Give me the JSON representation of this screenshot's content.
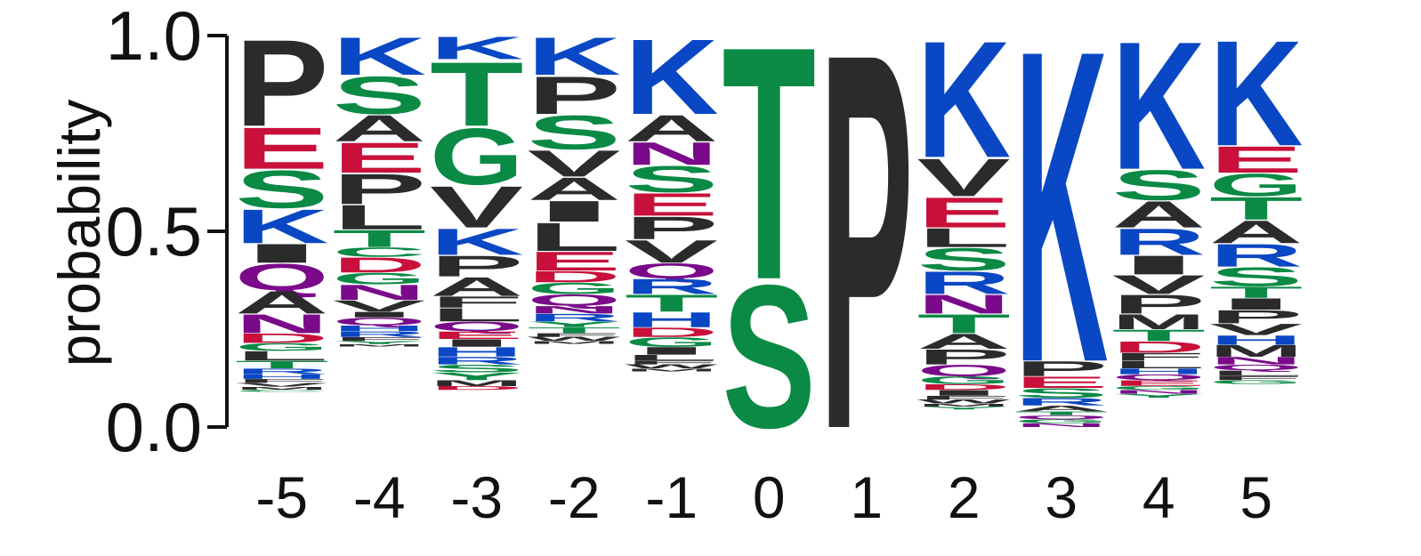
{
  "chart_data": {
    "type": "sequence-logo",
    "ylabel": "probability",
    "ylim": [
      0,
      1
    ],
    "yticks": [
      "0.0",
      "0.5",
      "1.0"
    ],
    "xticks": [
      "-5",
      "-4",
      "-3",
      "-2",
      "-1",
      "0",
      "1",
      "2",
      "3",
      "4",
      "5"
    ],
    "colors": {
      "K": "#0a47c4",
      "R": "#0a47c4",
      "H": "#0a47c4",
      "S": "#0b8a45",
      "T": "#0b8a45",
      "G": "#0b8a45",
      "C": "#0b8a45",
      "Y": "#0b8a45",
      "E": "#c8103a",
      "D": "#c8103a",
      "Q": "#7a0a8a",
      "N": "#7a0a8a",
      "P": "#2b2b2b",
      "A": "#2b2b2b",
      "V": "#2b2b2b",
      "L": "#2b2b2b",
      "I": "#2b2b2b",
      "M": "#2b2b2b",
      "F": "#2b2b2b",
      "W": "#2b2b2b"
    },
    "positions": [
      {
        "label": "-5",
        "letters": [
          {
            "aa": "P",
            "p": 0.23
          },
          {
            "aa": "E",
            "p": 0.11
          },
          {
            "aa": "S",
            "p": 0.1
          },
          {
            "aa": "K",
            "p": 0.09
          },
          {
            "aa": "I",
            "p": 0.05
          },
          {
            "aa": "Q",
            "p": 0.07
          },
          {
            "aa": "A",
            "p": 0.06
          },
          {
            "aa": "N",
            "p": 0.05
          },
          {
            "aa": "D",
            "p": 0.025
          },
          {
            "aa": "G",
            "p": 0.02
          },
          {
            "aa": "L",
            "p": 0.025
          },
          {
            "aa": "T",
            "p": 0.02
          },
          {
            "aa": "R",
            "p": 0.015
          },
          {
            "aa": "H",
            "p": 0.012
          },
          {
            "aa": "F",
            "p": 0.01
          },
          {
            "aa": "V",
            "p": 0.01
          },
          {
            "aa": "M",
            "p": 0.008
          },
          {
            "aa": "C",
            "p": 0.005
          }
        ]
      },
      {
        "label": "-4",
        "letters": [
          {
            "aa": "K",
            "p": 0.1
          },
          {
            "aa": "S",
            "p": 0.1
          },
          {
            "aa": "A",
            "p": 0.07
          },
          {
            "aa": "E",
            "p": 0.08
          },
          {
            "aa": "P",
            "p": 0.08
          },
          {
            "aa": "L",
            "p": 0.065
          },
          {
            "aa": "T",
            "p": 0.045
          },
          {
            "aa": "C",
            "p": 0.025
          },
          {
            "aa": "D",
            "p": 0.04
          },
          {
            "aa": "G",
            "p": 0.03
          },
          {
            "aa": "N",
            "p": 0.04
          },
          {
            "aa": "V",
            "p": 0.03
          },
          {
            "aa": "I",
            "p": 0.015
          },
          {
            "aa": "Q",
            "p": 0.02
          },
          {
            "aa": "H",
            "p": 0.015
          },
          {
            "aa": "R",
            "p": 0.015
          },
          {
            "aa": "F",
            "p": 0.01
          },
          {
            "aa": "Y",
            "p": 0.008
          },
          {
            "aa": "M",
            "p": 0.006
          }
        ]
      },
      {
        "label": "-3",
        "letters": [
          {
            "aa": "K",
            "p": 0.06
          },
          {
            "aa": "T",
            "p": 0.17
          },
          {
            "aa": "G",
            "p": 0.15
          },
          {
            "aa": "V",
            "p": 0.11
          },
          {
            "aa": "K",
            "p": 0.07
          },
          {
            "aa": "P",
            "p": 0.055
          },
          {
            "aa": "A",
            "p": 0.05
          },
          {
            "aa": "F",
            "p": 0.03
          },
          {
            "aa": "L",
            "p": 0.035
          },
          {
            "aa": "Q",
            "p": 0.025
          },
          {
            "aa": "E",
            "p": 0.02
          },
          {
            "aa": "I",
            "p": 0.02
          },
          {
            "aa": "H",
            "p": 0.025
          },
          {
            "aa": "R",
            "p": 0.02
          },
          {
            "aa": "S",
            "p": 0.02
          },
          {
            "aa": "Y",
            "p": 0.02
          },
          {
            "aa": "M",
            "p": 0.015
          },
          {
            "aa": "D",
            "p": 0.01
          }
        ]
      },
      {
        "label": "-2",
        "letters": [
          {
            "aa": "K",
            "p": 0.1
          },
          {
            "aa": "P",
            "p": 0.1
          },
          {
            "aa": "S",
            "p": 0.09
          },
          {
            "aa": "V",
            "p": 0.07
          },
          {
            "aa": "A",
            "p": 0.06
          },
          {
            "aa": "I",
            "p": 0.055
          },
          {
            "aa": "L",
            "p": 0.075
          },
          {
            "aa": "E",
            "p": 0.05
          },
          {
            "aa": "D",
            "p": 0.03
          },
          {
            "aa": "G",
            "p": 0.03
          },
          {
            "aa": "Q",
            "p": 0.03
          },
          {
            "aa": "N",
            "p": 0.02
          },
          {
            "aa": "R",
            "p": 0.02
          },
          {
            "aa": "Y",
            "p": 0.015
          },
          {
            "aa": "T",
            "p": 0.015
          },
          {
            "aa": "F",
            "p": 0.01
          },
          {
            "aa": "W",
            "p": 0.01
          },
          {
            "aa": "M",
            "p": 0.008
          }
        ]
      },
      {
        "label": "-1",
        "letters": [
          {
            "aa": "K",
            "p": 0.2
          },
          {
            "aa": "A",
            "p": 0.07
          },
          {
            "aa": "N",
            "p": 0.06
          },
          {
            "aa": "S",
            "p": 0.07
          },
          {
            "aa": "E",
            "p": 0.06
          },
          {
            "aa": "P",
            "p": 0.06
          },
          {
            "aa": "V",
            "p": 0.06
          },
          {
            "aa": "Q",
            "p": 0.04
          },
          {
            "aa": "R",
            "p": 0.04
          },
          {
            "aa": "T",
            "p": 0.045
          },
          {
            "aa": "H",
            "p": 0.04
          },
          {
            "aa": "D",
            "p": 0.025
          },
          {
            "aa": "G",
            "p": 0.025
          },
          {
            "aa": "I",
            "p": 0.02
          },
          {
            "aa": "L",
            "p": 0.015
          },
          {
            "aa": "F",
            "p": 0.01
          },
          {
            "aa": "W",
            "p": 0.01
          },
          {
            "aa": "M",
            "p": 0.008
          }
        ]
      },
      {
        "label": "0",
        "letters": [
          {
            "aa": "T",
            "p": 0.62
          },
          {
            "aa": "S",
            "p": 0.38
          }
        ]
      },
      {
        "label": "1",
        "letters": [
          {
            "aa": "P",
            "p": 1.0
          }
        ]
      },
      {
        "label": "2",
        "letters": [
          {
            "aa": "K",
            "p": 0.31
          },
          {
            "aa": "V",
            "p": 0.1
          },
          {
            "aa": "E",
            "p": 0.08
          },
          {
            "aa": "L",
            "p": 0.05
          },
          {
            "aa": "S",
            "p": 0.06
          },
          {
            "aa": "R",
            "p": 0.06
          },
          {
            "aa": "N",
            "p": 0.05
          },
          {
            "aa": "T",
            "p": 0.05
          },
          {
            "aa": "A",
            "p": 0.04
          },
          {
            "aa": "P",
            "p": 0.04
          },
          {
            "aa": "Q",
            "p": 0.03
          },
          {
            "aa": "G",
            "p": 0.02
          },
          {
            "aa": "D",
            "p": 0.015
          },
          {
            "aa": "I",
            "p": 0.015
          },
          {
            "aa": "F",
            "p": 0.01
          },
          {
            "aa": "W",
            "p": 0.01
          },
          {
            "aa": "M",
            "p": 0.008
          },
          {
            "aa": "Y",
            "p": 0.007
          }
        ]
      },
      {
        "label": "3",
        "letters": [
          {
            "aa": "K",
            "p": 0.83
          },
          {
            "aa": "P",
            "p": 0.04
          },
          {
            "aa": "E",
            "p": 0.03
          },
          {
            "aa": "S",
            "p": 0.025
          },
          {
            "aa": "R",
            "p": 0.02
          },
          {
            "aa": "A",
            "p": 0.015
          },
          {
            "aa": "T",
            "p": 0.01
          },
          {
            "aa": "Q",
            "p": 0.01
          },
          {
            "aa": "G",
            "p": 0.01
          },
          {
            "aa": "N",
            "p": 0.01
          }
        ]
      },
      {
        "label": "4",
        "letters": [
          {
            "aa": "K",
            "p": 0.34
          },
          {
            "aa": "S",
            "p": 0.08
          },
          {
            "aa": "A",
            "p": 0.07
          },
          {
            "aa": "R",
            "p": 0.07
          },
          {
            "aa": "I",
            "p": 0.05
          },
          {
            "aa": "V",
            "p": 0.05
          },
          {
            "aa": "P",
            "p": 0.05
          },
          {
            "aa": "M",
            "p": 0.04
          },
          {
            "aa": "T",
            "p": 0.03
          },
          {
            "aa": "D",
            "p": 0.03
          },
          {
            "aa": "F",
            "p": 0.02
          },
          {
            "aa": "L",
            "p": 0.02
          },
          {
            "aa": "H",
            "p": 0.015
          },
          {
            "aa": "Q",
            "p": 0.015
          },
          {
            "aa": "E",
            "p": 0.015
          },
          {
            "aa": "G",
            "p": 0.01
          },
          {
            "aa": "N",
            "p": 0.01
          },
          {
            "aa": "Y",
            "p": 0.01
          }
        ]
      },
      {
        "label": "5",
        "letters": [
          {
            "aa": "K",
            "p": 0.28
          },
          {
            "aa": "E",
            "p": 0.07
          },
          {
            "aa": "G",
            "p": 0.06
          },
          {
            "aa": "T",
            "p": 0.06
          },
          {
            "aa": "A",
            "p": 0.06
          },
          {
            "aa": "R",
            "p": 0.06
          },
          {
            "aa": "S",
            "p": 0.05
          },
          {
            "aa": "T",
            "p": 0.03
          },
          {
            "aa": "I",
            "p": 0.03
          },
          {
            "aa": "P",
            "p": 0.035
          },
          {
            "aa": "V",
            "p": 0.03
          },
          {
            "aa": "H",
            "p": 0.025
          },
          {
            "aa": "M",
            "p": 0.03
          },
          {
            "aa": "N",
            "p": 0.02
          },
          {
            "aa": "Q",
            "p": 0.015
          },
          {
            "aa": "L",
            "p": 0.015
          },
          {
            "aa": "F",
            "p": 0.01
          },
          {
            "aa": "G",
            "p": 0.01
          }
        ]
      }
    ]
  }
}
